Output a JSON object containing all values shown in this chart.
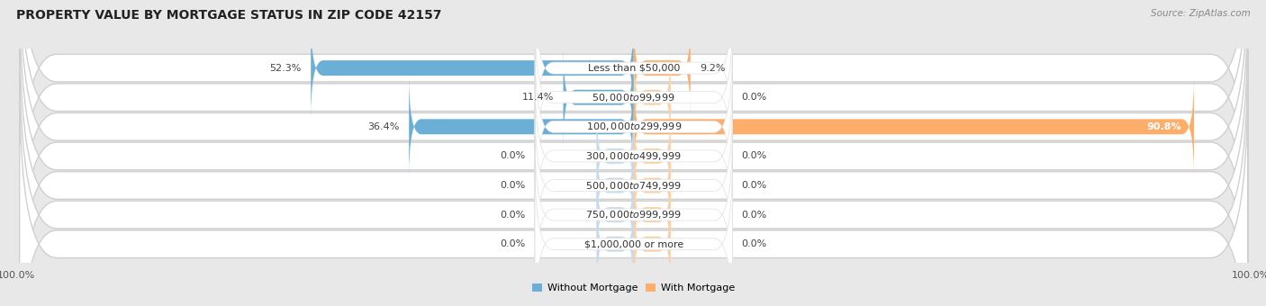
{
  "title": "PROPERTY VALUE BY MORTGAGE STATUS IN ZIP CODE 42157",
  "source": "Source: ZipAtlas.com",
  "categories": [
    "Less than $50,000",
    "$50,000 to $99,999",
    "$100,000 to $299,999",
    "$300,000 to $499,999",
    "$500,000 to $749,999",
    "$750,000 to $999,999",
    "$1,000,000 or more"
  ],
  "without_mortgage": [
    52.3,
    11.4,
    36.4,
    0.0,
    0.0,
    0.0,
    0.0
  ],
  "with_mortgage": [
    9.2,
    0.0,
    90.8,
    0.0,
    0.0,
    0.0,
    0.0
  ],
  "color_without": "#6baed6",
  "color_with": "#fdae6b",
  "color_without_light": "#c6dbef",
  "color_with_light": "#fdd0a2",
  "bg_color": "#e8e8e8",
  "row_bg": "#ffffff",
  "row_border": "#d0d0d0",
  "bar_height": 0.52,
  "max_val": 100.0,
  "placeholder_val": 6.0,
  "title_fontsize": 10,
  "label_fontsize": 8,
  "tick_fontsize": 8,
  "legend_fontsize": 8
}
